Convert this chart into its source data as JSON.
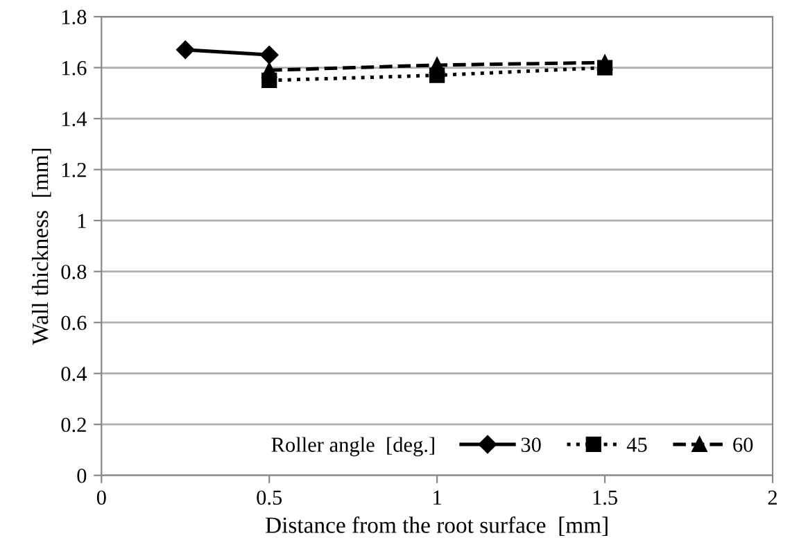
{
  "chart_data": {
    "type": "line",
    "xlabel": "Distance from the root surface  [mm]",
    "ylabel": "Wall thickness  [mm]",
    "legend_title": "Roller angle  [deg.]",
    "legend": "bottom",
    "grid": "y",
    "xlim": [
      0,
      2
    ],
    "xticks": [
      0,
      0.5,
      1,
      1.5,
      2
    ],
    "ylim": [
      0,
      1.8
    ],
    "yticks": [
      0,
      0.2,
      0.4,
      0.6,
      0.8,
      1,
      1.2,
      1.4,
      1.6,
      1.8
    ],
    "series": [
      {
        "name": "30",
        "color": "#000000",
        "marker": "diamond",
        "line_style": "solid",
        "x": [
          0.25,
          0.5
        ],
        "values": [
          1.67,
          1.65
        ]
      },
      {
        "name": "45",
        "color": "#000000",
        "marker": "square",
        "line_style": "dotted",
        "x": [
          0.5,
          1,
          1.5
        ],
        "values": [
          1.55,
          1.57,
          1.6
        ]
      },
      {
        "name": "60",
        "color": "#000000",
        "marker": "triangle",
        "line_style": "dashed",
        "x": [
          0.5,
          1,
          1.5
        ],
        "values": [
          1.59,
          1.61,
          1.62
        ]
      }
    ]
  }
}
